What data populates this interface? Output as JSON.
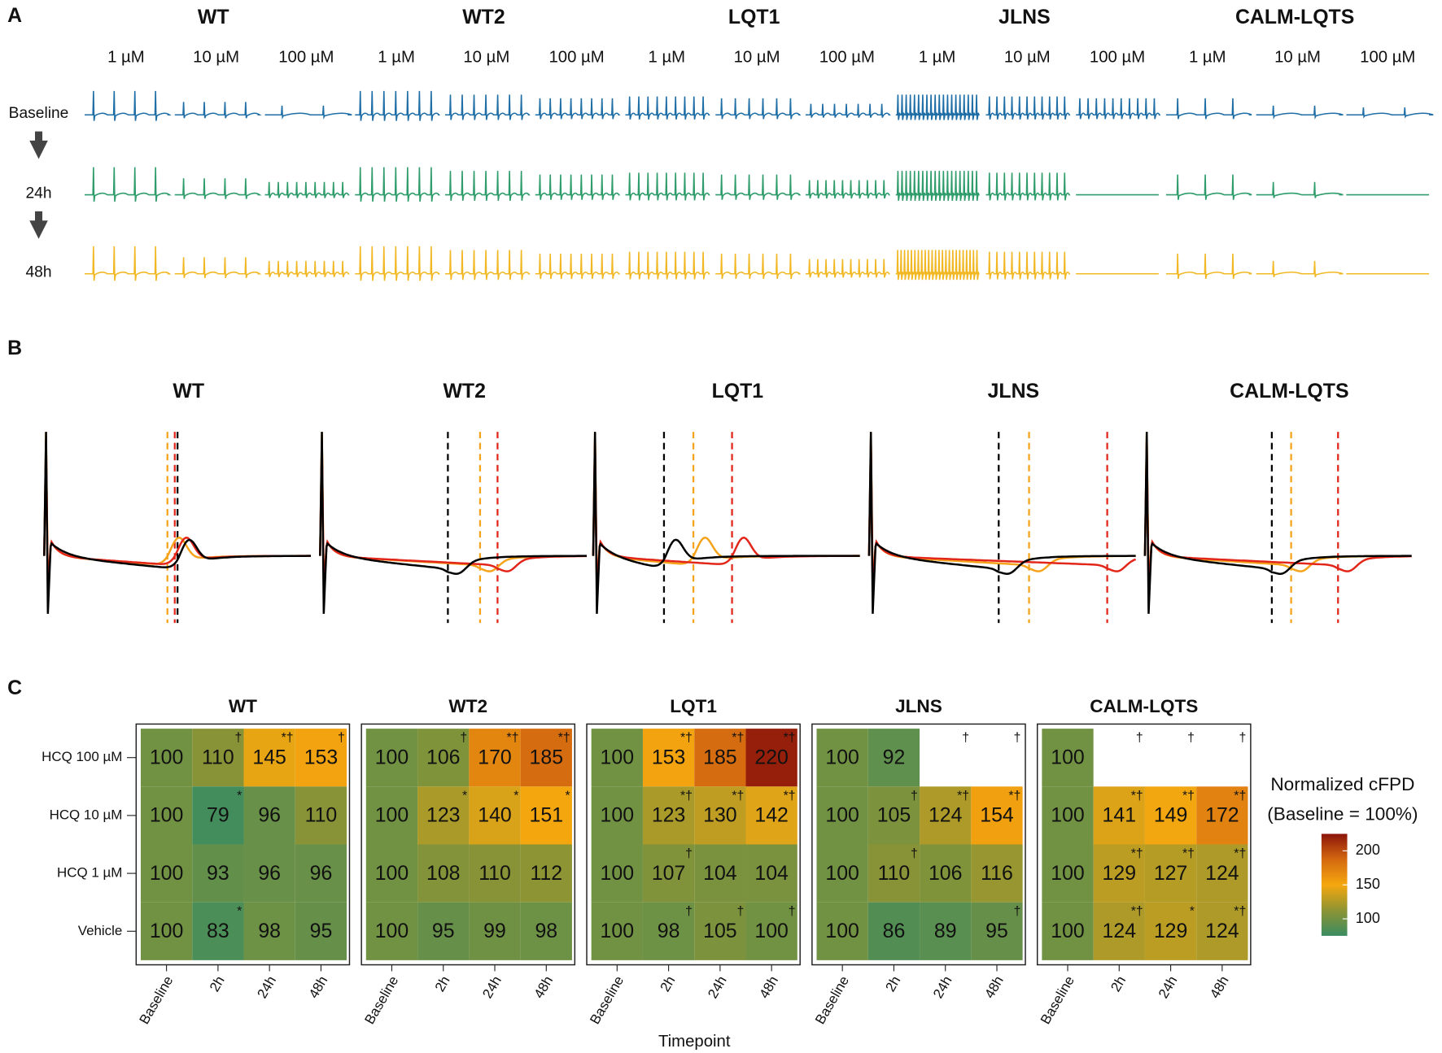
{
  "panel_labels": [
    "A",
    "B",
    "C"
  ],
  "groups": [
    "WT",
    "WT2",
    "LQT1",
    "JLNS",
    "CALM-LQTS"
  ],
  "panel_a": {
    "concentrations": [
      "1 µM",
      "10 µM",
      "100 µM"
    ],
    "timepoints": [
      "Baseline",
      "24h",
      "48h"
    ],
    "colors": [
      "#1f6ea6",
      "#2f9c6b",
      "#f2b824"
    ]
  },
  "panel_b": {
    "colors": [
      "#000000",
      "#f5a31a",
      "#e2261a"
    ]
  },
  "chart_data": {
    "type": "heatmap",
    "rows": [
      "HCQ 100 µM",
      "HCQ 10 µM",
      "HCQ 1 µM",
      "Vehicle"
    ],
    "columns": [
      "Baseline",
      "2h",
      "24h",
      "48h"
    ],
    "xlabel": "Timepoint",
    "legend_title": [
      "Normalized cFPD",
      "(Baseline = 100%)"
    ],
    "scale": {
      "lim": [
        75,
        225
      ],
      "ticks": [
        100,
        150,
        200
      ],
      "colors": [
        "#3a8c62",
        "#8d9433",
        "#f5a80f",
        "#d46810",
        "#8b140a"
      ]
    },
    "facets": [
      {
        "title": "WT",
        "values": [
          [
            100,
            110,
            145,
            153
          ],
          [
            100,
            79,
            96,
            110
          ],
          [
            100,
            93,
            96,
            96
          ],
          [
            100,
            83,
            98,
            95
          ]
        ],
        "annotations": [
          [
            null,
            "†",
            "*†",
            "†"
          ],
          [
            null,
            "*",
            null,
            null
          ],
          [
            null,
            null,
            null,
            null
          ],
          [
            null,
            "*",
            null,
            null
          ]
        ]
      },
      {
        "title": "WT2",
        "values": [
          [
            100,
            106,
            170,
            185
          ],
          [
            100,
            123,
            140,
            151
          ],
          [
            100,
            108,
            110,
            112
          ],
          [
            100,
            95,
            99,
            98
          ]
        ],
        "annotations": [
          [
            null,
            "†",
            "*†",
            "*†"
          ],
          [
            null,
            "*",
            "*",
            "*"
          ],
          [
            null,
            null,
            null,
            null
          ],
          [
            null,
            null,
            null,
            null
          ]
        ]
      },
      {
        "title": "LQT1",
        "values": [
          [
            100,
            153,
            185,
            220
          ],
          [
            100,
            123,
            130,
            142
          ],
          [
            100,
            107,
            104,
            104
          ],
          [
            100,
            98,
            105,
            100
          ]
        ],
        "annotations": [
          [
            null,
            "*†",
            "*†",
            "*†"
          ],
          [
            null,
            "*†",
            "*†",
            "*†"
          ],
          [
            null,
            "†",
            null,
            null
          ],
          [
            null,
            "†",
            "†",
            "†"
          ]
        ]
      },
      {
        "title": "JLNS",
        "values": [
          [
            100,
            92,
            null,
            null
          ],
          [
            100,
            105,
            124,
            154
          ],
          [
            100,
            110,
            106,
            116
          ],
          [
            100,
            86,
            89,
            95
          ]
        ],
        "annotations": [
          [
            null,
            null,
            "†",
            "†"
          ],
          [
            null,
            "†",
            "*†",
            "*†"
          ],
          [
            null,
            "†",
            null,
            null
          ],
          [
            null,
            null,
            null,
            "†"
          ]
        ]
      },
      {
        "title": "CALM-LQTS",
        "values": [
          [
            100,
            null,
            null,
            null
          ],
          [
            100,
            141,
            149,
            172
          ],
          [
            100,
            129,
            127,
            124
          ],
          [
            100,
            124,
            129,
            124
          ]
        ],
        "annotations": [
          [
            null,
            "†",
            "†",
            "†"
          ],
          [
            null,
            "*†",
            "*†",
            "*†"
          ],
          [
            null,
            "*†",
            "*†",
            "*†"
          ],
          [
            null,
            "*†",
            "*",
            "*†"
          ]
        ]
      }
    ]
  }
}
